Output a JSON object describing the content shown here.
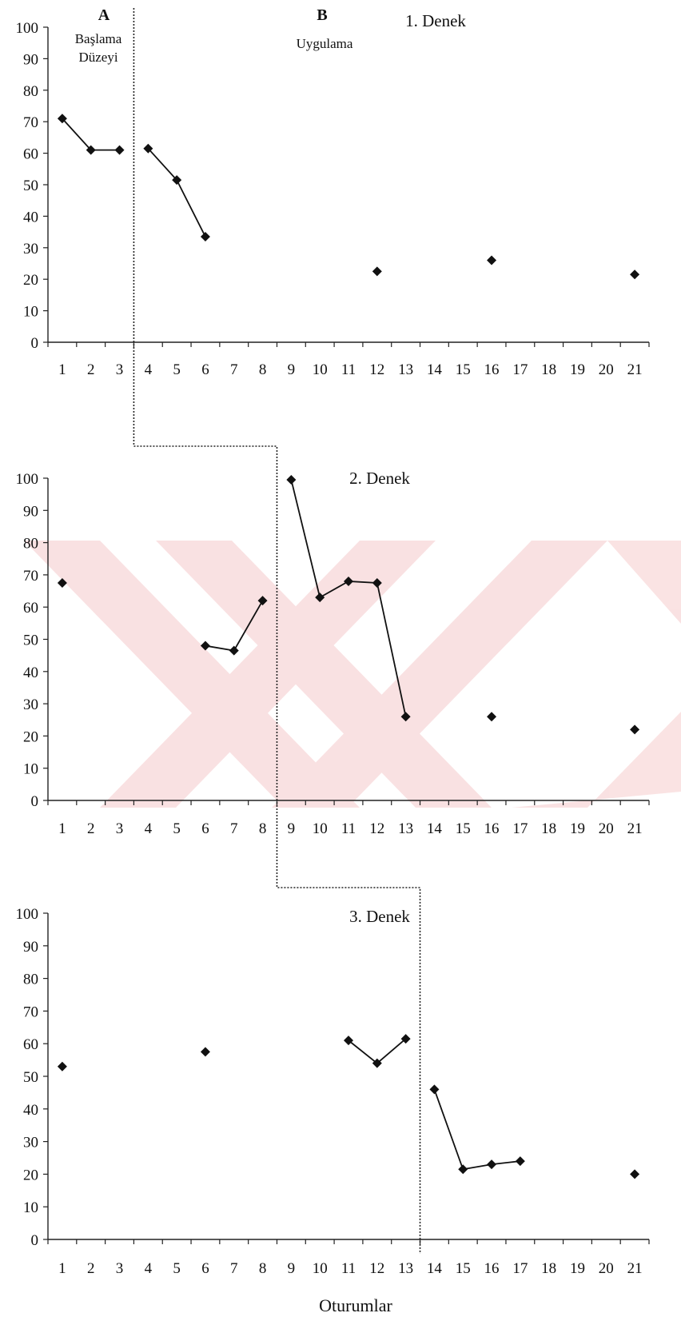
{
  "chart_data": [
    {
      "type": "line",
      "title": "1. Denek",
      "phases": [
        {
          "letter": "A",
          "name_lines": [
            "Başlama",
            "Düzeyi"
          ]
        },
        {
          "letter": "B",
          "name_lines": [
            "Uygulama"
          ]
        }
      ],
      "phase_change_after_session": 3,
      "categories": [
        "1",
        "2",
        "3",
        "4",
        "5",
        "6",
        "7",
        "8",
        "9",
        "10",
        "11",
        "12",
        "13",
        "14",
        "15",
        "16",
        "17",
        "18",
        "19",
        "20",
        "21"
      ],
      "ylim": [
        0,
        100
      ],
      "yticks": [
        0,
        10,
        20,
        30,
        40,
        50,
        60,
        70,
        80,
        90,
        100
      ],
      "segments": [
        [
          [
            1,
            71
          ],
          [
            2,
            61
          ],
          [
            3,
            61
          ]
        ],
        [
          [
            4,
            61.5
          ],
          [
            5,
            51.5
          ],
          [
            6,
            33.5
          ]
        ],
        [
          [
            12,
            22.5
          ]
        ],
        [
          [
            16,
            26
          ]
        ],
        [
          [
            21,
            21.5
          ]
        ]
      ]
    },
    {
      "type": "line",
      "title": "2. Denek",
      "phase_change_after_session": 8,
      "categories": [
        "1",
        "2",
        "3",
        "4",
        "5",
        "6",
        "7",
        "8",
        "9",
        "10",
        "11",
        "12",
        "13",
        "14",
        "15",
        "16",
        "17",
        "18",
        "19",
        "20",
        "21"
      ],
      "ylim": [
        0,
        100
      ],
      "yticks": [
        0,
        10,
        20,
        30,
        40,
        50,
        60,
        70,
        80,
        90,
        100
      ],
      "segments": [
        [
          [
            1,
            67.5
          ]
        ],
        [
          [
            6,
            48
          ],
          [
            7,
            46.5
          ],
          [
            8,
            62
          ]
        ],
        [
          [
            9,
            99.5
          ],
          [
            10,
            63
          ],
          [
            11,
            68
          ],
          [
            12,
            67.5
          ],
          [
            13,
            26
          ]
        ],
        [
          [
            16,
            26
          ]
        ],
        [
          [
            21,
            22
          ]
        ]
      ]
    },
    {
      "type": "line",
      "title": "3. Denek",
      "xlabel": "Oturumlar",
      "phase_change_after_session": 13,
      "categories": [
        "1",
        "2",
        "3",
        "4",
        "5",
        "6",
        "7",
        "8",
        "9",
        "10",
        "11",
        "12",
        "13",
        "14",
        "15",
        "16",
        "17",
        "18",
        "19",
        "20",
        "21"
      ],
      "ylim": [
        0,
        100
      ],
      "yticks": [
        0,
        10,
        20,
        30,
        40,
        50,
        60,
        70,
        80,
        90,
        100
      ],
      "segments": [
        [
          [
            1,
            53
          ]
        ],
        [
          [
            6,
            57.5
          ]
        ],
        [
          [
            11,
            61
          ],
          [
            12,
            54
          ],
          [
            13,
            61.5
          ]
        ],
        [
          [
            14,
            46
          ],
          [
            15,
            21.5
          ],
          [
            16,
            23
          ],
          [
            17,
            24
          ]
        ],
        [
          [
            21,
            20
          ]
        ]
      ]
    }
  ]
}
